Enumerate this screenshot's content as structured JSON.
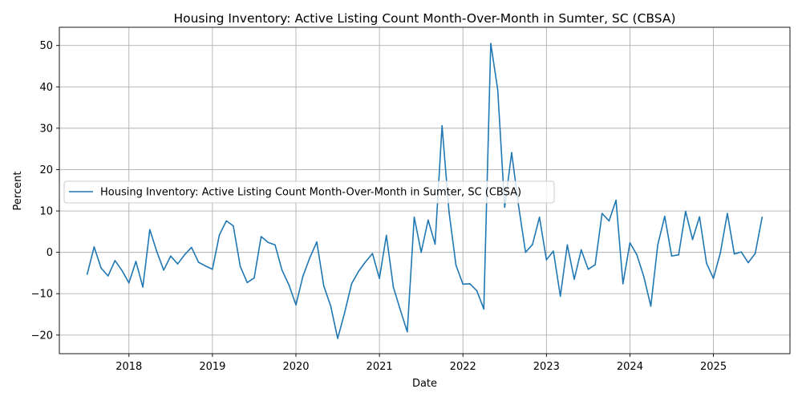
{
  "chart_data": {
    "type": "line",
    "title": "Housing Inventory: Active Listing Count Month-Over-Month in Sumter, SC (CBSA)",
    "xlabel": "Date",
    "ylabel": "Percent",
    "ylim": [
      -24.5,
      54.4
    ],
    "xlim": [
      "2017-03-01",
      "2025-12-01"
    ],
    "y_ticks": [
      -20,
      -10,
      0,
      10,
      20,
      30,
      40,
      50
    ],
    "x_ticks": [
      "2018",
      "2019",
      "2020",
      "2021",
      "2022",
      "2023",
      "2024",
      "2025"
    ],
    "grid": true,
    "legend_position": "center-left",
    "colors": {
      "series": "#1f77b4",
      "grid": "#b0b0b0"
    },
    "series": [
      {
        "name": "Housing Inventory: Active Listing Count Month-Over-Month in Sumter, SC (CBSA)",
        "x": [
          "2017-07",
          "2017-08",
          "2017-09",
          "2017-10",
          "2017-11",
          "2017-12",
          "2018-01",
          "2018-02",
          "2018-03",
          "2018-04",
          "2018-05",
          "2018-06",
          "2018-07",
          "2018-08",
          "2018-09",
          "2018-10",
          "2018-11",
          "2018-12",
          "2019-01",
          "2019-02",
          "2019-03",
          "2019-04",
          "2019-05",
          "2019-06",
          "2019-07",
          "2019-08",
          "2019-09",
          "2019-10",
          "2019-11",
          "2019-12",
          "2020-01",
          "2020-02",
          "2020-03",
          "2020-04",
          "2020-05",
          "2020-06",
          "2020-07",
          "2020-08",
          "2020-09",
          "2020-10",
          "2020-11",
          "2020-12",
          "2021-01",
          "2021-02",
          "2021-03",
          "2021-04",
          "2021-05",
          "2021-06",
          "2021-07",
          "2021-08",
          "2021-09",
          "2021-10",
          "2021-11",
          "2021-12",
          "2022-01",
          "2022-02",
          "2022-03",
          "2022-04",
          "2022-05",
          "2022-06",
          "2022-07",
          "2022-08",
          "2022-09",
          "2022-10",
          "2022-11",
          "2022-12",
          "2023-01",
          "2023-02",
          "2023-03",
          "2023-04",
          "2023-05",
          "2023-06",
          "2023-07",
          "2023-08",
          "2023-09",
          "2023-10",
          "2023-11",
          "2023-12",
          "2024-01",
          "2024-02",
          "2024-03",
          "2024-04",
          "2024-05",
          "2024-06",
          "2024-07",
          "2024-08",
          "2024-09",
          "2024-10",
          "2024-11",
          "2024-12",
          "2025-01",
          "2025-02",
          "2025-03",
          "2025-04",
          "2025-05",
          "2025-06",
          "2025-07",
          "2025-08"
        ],
        "values": [
          -5.3,
          1.3,
          -3.8,
          -5.7,
          -2.0,
          -4.4,
          -7.4,
          -2.2,
          -8.4,
          5.5,
          0.2,
          -4.3,
          -0.9,
          -2.8,
          -0.6,
          1.2,
          -2.4,
          -3.3,
          -4.1,
          4.2,
          7.6,
          6.4,
          -3.4,
          -7.3,
          -6.2,
          3.8,
          2.4,
          1.8,
          -4.3,
          -7.9,
          -12.7,
          -5.8,
          -1.3,
          2.5,
          -8.1,
          -13.0,
          -20.8,
          -14.6,
          -7.6,
          -4.6,
          -2.3,
          -0.3,
          -6.3,
          4.1,
          -8.4,
          -13.9,
          -19.2,
          8.5,
          0.0,
          7.8,
          2.0,
          30.6,
          9.8,
          -3.1,
          -7.7,
          -7.6,
          -9.3,
          -13.7,
          50.5,
          39.3,
          10.9,
          24.1,
          11.2,
          0.0,
          1.9,
          8.5,
          -1.8,
          0.3,
          -10.6,
          1.8,
          -6.5,
          0.6,
          -4.1,
          -3.0,
          9.4,
          7.6,
          12.6,
          -7.6,
          2.3,
          -0.6,
          -5.9,
          -13.0,
          1.8,
          8.7,
          -0.9,
          -0.6,
          9.9,
          3.1,
          8.6,
          -2.6,
          -6.3,
          -0.1,
          9.4,
          -0.4,
          0.1,
          -2.5,
          -0.3,
          8.5
        ]
      }
    ]
  }
}
